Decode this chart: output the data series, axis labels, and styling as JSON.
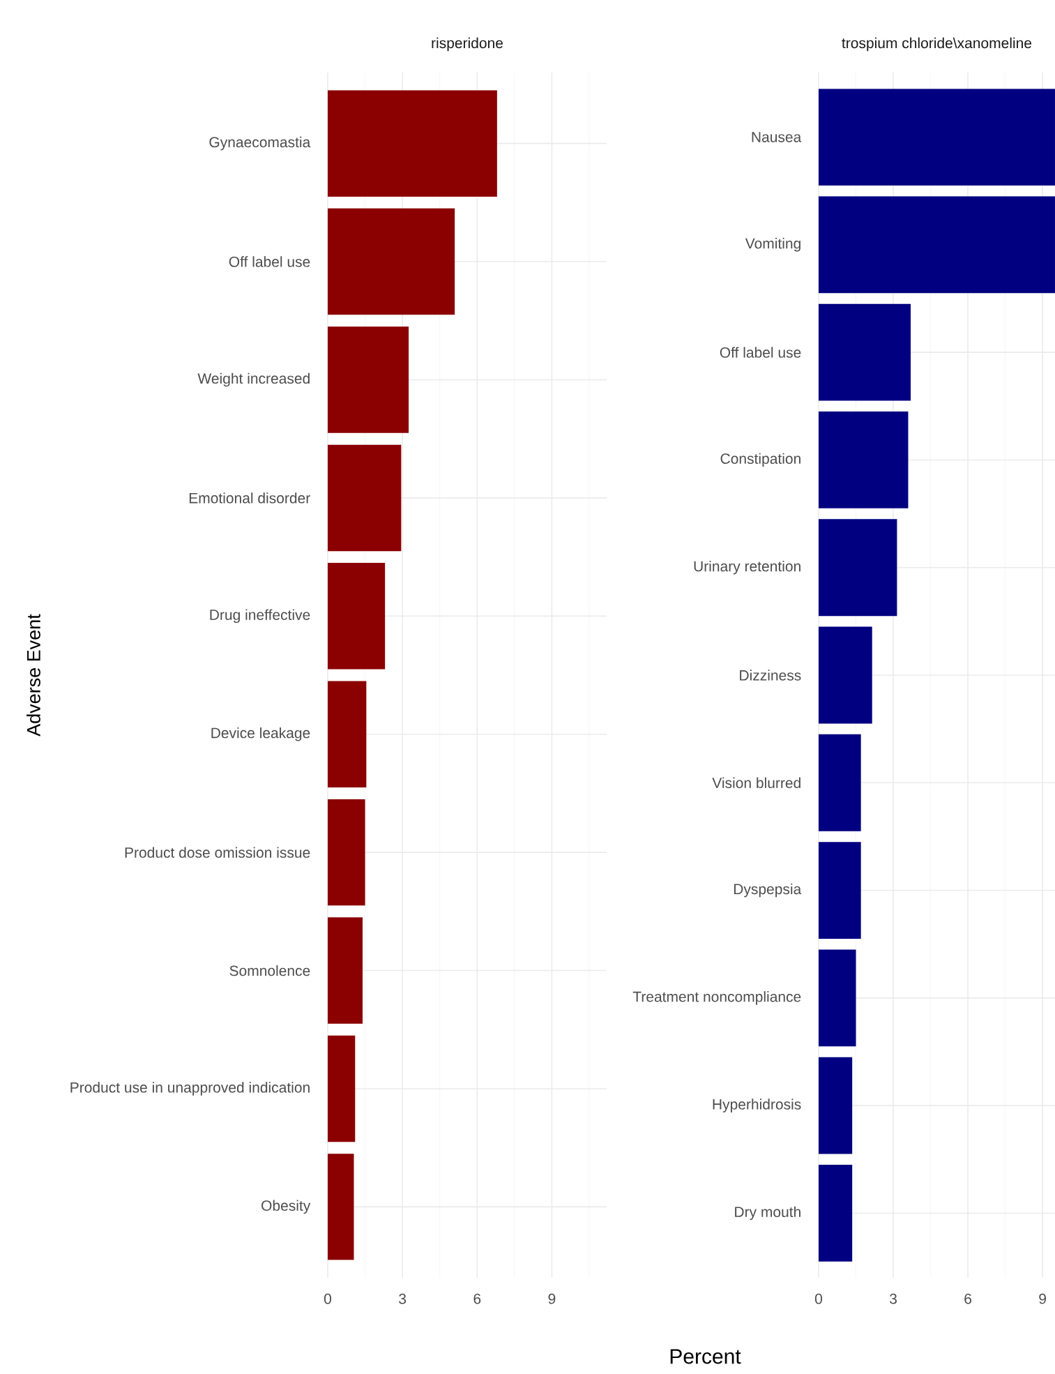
{
  "chart_data": [
    {
      "type": "bar",
      "orientation": "horizontal",
      "title": "risperidone",
      "ylabel": "Adverse Event",
      "color": "#8b0000",
      "grid": true,
      "categories": [
        "Gynaecomastia",
        "Off label use",
        "Weight increased",
        "Emotional disorder",
        "Drug ineffective",
        "Device leakage",
        "Product dose omission issue",
        "Somnolence",
        "Product use in unapproved indication",
        "Obesity"
      ],
      "values": [
        6.8,
        5.1,
        3.25,
        2.95,
        2.3,
        1.55,
        1.5,
        1.4,
        1.1,
        1.05
      ],
      "xlim": [
        0,
        11.2
      ],
      "xticks": [
        0,
        3,
        6,
        9
      ]
    },
    {
      "type": "bar",
      "orientation": "horizontal",
      "title": "trospium chloride\\xanomeline",
      "xlabel": "Percent",
      "color": "#000080",
      "grid": true,
      "categories": [
        "Nausea",
        "Vomiting",
        "Off label use",
        "Constipation",
        "Urinary retention",
        "Dizziness",
        "Vision blurred",
        "Dyspepsia",
        "Treatment noncompliance",
        "Hyperhidrosis",
        "Dry mouth"
      ],
      "values": [
        9.5,
        9.5,
        3.7,
        3.6,
        3.15,
        2.15,
        1.7,
        1.7,
        1.5,
        1.35,
        1.35
      ],
      "xlim": [
        0,
        9.5
      ],
      "xticks": [
        0,
        3,
        6,
        9
      ]
    }
  ]
}
